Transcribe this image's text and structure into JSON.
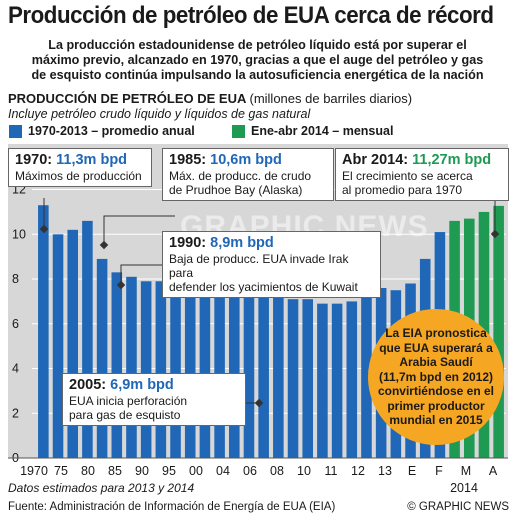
{
  "title": "Producción de petróleo de EUA cerca de récord",
  "subtitle_lines": [
    "La producción estadounidense de petróleo líquido está por superar el",
    "máximo previo, alcanzado en 1970, gracias a que el auge del petróleo y gas",
    "de esquisto continúa impulsando la autosuficiencia energética de la nación"
  ],
  "section": {
    "title": "PRODUCCIÓN DE PETRÓLEO DE EUA",
    "unit": "(millones de barriles diarios)",
    "note": "Incluye petróleo crudo líquido y líquidos de gas natural"
  },
  "legend": [
    {
      "label": "1970-2013 – promedio anual",
      "color": "#2067b7"
    },
    {
      "label": "Ene-abr 2014 – mensual",
      "color": "#1f9a52"
    }
  ],
  "annotations": {
    "a1970": {
      "head": "1970:",
      "value": "11,3m bpd",
      "lines": [
        "Máximos de producción"
      ]
    },
    "a1985": {
      "head": "1985:",
      "value": "10,6m bpd",
      "lines": [
        "Máx. de producc. de crudo",
        "de Prudhoe Bay (Alaska)"
      ]
    },
    "a1990": {
      "head": "1990:",
      "value": "8,9m bpd",
      "lines": [
        "Baja de producc. EUA invade Irak para",
        "defender los yacimientos de Kuwait"
      ]
    },
    "a2005": {
      "head": "2005:",
      "value": "6,9m bpd",
      "lines": [
        "EUA inicia perforación",
        "para gas de esquisto"
      ]
    },
    "a2014": {
      "head": "Abr 2014:",
      "value": "11,27m bpd",
      "lines": [
        "El crecimiento se acerca",
        "al promedio para 1970"
      ]
    }
  },
  "badge_lines": [
    "La EIA pronostica",
    "que EUA superará a",
    "Arabia Saudí",
    "(11,7m bpd en 2012)",
    "convirtiéndose en el",
    "primer productor",
    "mundial en 2015"
  ],
  "footer_note": "Datos estimados para 2013 y 2014",
  "source": "Fuente: Administración de Información de Energía de EUA (EIA)",
  "credit": "© GRAPHIC NEWS",
  "watermark": "GRAPHIC NEWS",
  "chart_data": {
    "type": "bar",
    "categories": [
      "1970",
      "1975",
      "1980",
      "1985",
      "1990",
      "1991",
      "1992",
      "1993",
      "1994",
      "1995",
      "1996",
      "1997",
      "1998",
      "1999",
      "2000",
      "2001",
      "2002",
      "2003",
      "2004",
      "2005",
      "2006",
      "2007",
      "2008",
      "2009",
      "2010",
      "2011",
      "2012",
      "2013",
      "E",
      "F",
      "M",
      "A"
    ],
    "x_tick_labels": [
      "1970",
      "75",
      "80",
      "85",
      "90",
      "95",
      "00",
      "04",
      "06",
      "08",
      "10",
      "11",
      "12",
      "13",
      "E",
      "F",
      "M",
      "A"
    ],
    "x_secondary_label": "2014",
    "series": [
      {
        "name": "1970-2013 – promedio anual",
        "color": "#2067b7",
        "values": [
          11.3,
          10.0,
          10.2,
          10.6,
          8.9,
          8.3,
          8.1,
          7.9,
          7.9,
          8.0,
          7.7,
          7.6,
          7.6,
          7.2,
          7.3,
          7.2,
          7.3,
          7.1,
          7.1,
          6.9,
          6.9,
          7.0,
          7.3,
          7.6,
          7.5,
          7.8,
          8.9,
          10.1,
          null,
          null,
          null,
          null
        ]
      },
      {
        "name": "Ene-abr 2014 – mensual",
        "color": "#1f9a52",
        "values": [
          null,
          null,
          null,
          null,
          null,
          null,
          null,
          null,
          null,
          null,
          null,
          null,
          null,
          null,
          null,
          null,
          null,
          null,
          null,
          null,
          null,
          null,
          null,
          null,
          null,
          null,
          null,
          null,
          10.6,
          10.7,
          11.0,
          11.27
        ]
      }
    ],
    "y_ticks": [
      0,
      2,
      4,
      6,
      8,
      10,
      12
    ],
    "ylim": [
      0,
      13.5
    ],
    "grid": true
  }
}
